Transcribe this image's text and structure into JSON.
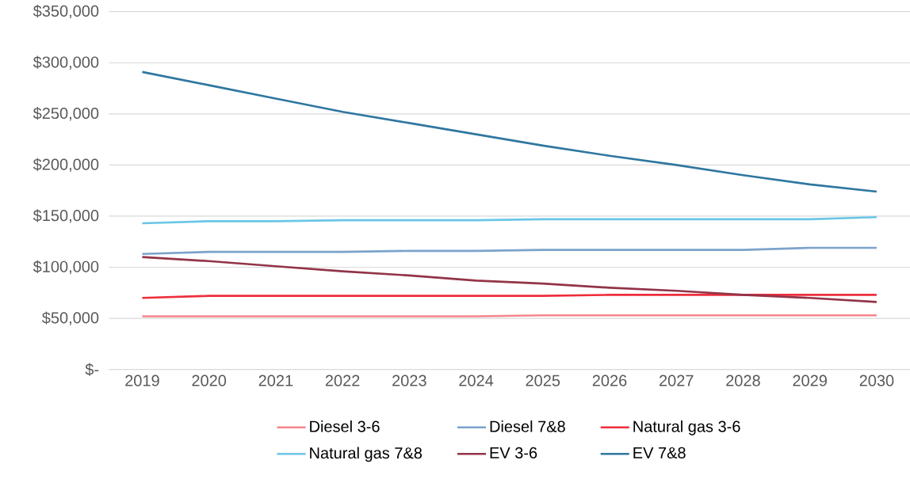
{
  "chart_data": {
    "type": "line",
    "categories": [
      "2019",
      "2020",
      "2021",
      "2022",
      "2023",
      "2024",
      "2025",
      "2026",
      "2027",
      "2028",
      "2029",
      "2030"
    ],
    "series": [
      {
        "name": "Diesel 3-6",
        "color": "#f4868c",
        "values": [
          52000,
          52000,
          52000,
          52000,
          52000,
          52000,
          53000,
          53000,
          53000,
          53000,
          53000,
          53000
        ]
      },
      {
        "name": "Diesel 7&8",
        "color": "#7ba3cb",
        "values": [
          113000,
          115000,
          115000,
          115000,
          116000,
          116000,
          117000,
          117000,
          117000,
          117000,
          119000,
          119000
        ]
      },
      {
        "name": "Natural gas 3-6",
        "color": "#ee2e3c",
        "values": [
          70000,
          72000,
          72000,
          72000,
          72000,
          72000,
          72000,
          73000,
          73000,
          73000,
          73000,
          73000
        ]
      },
      {
        "name": "Natural gas 7&8",
        "color": "#6ac6e6",
        "values": [
          143000,
          145000,
          145000,
          146000,
          146000,
          146000,
          147000,
          147000,
          147000,
          147000,
          147000,
          149000
        ]
      },
      {
        "name": "EV 3-6",
        "color": "#923448",
        "values": [
          110000,
          106000,
          101000,
          96000,
          92000,
          87000,
          84000,
          80000,
          77000,
          73000,
          70000,
          66000
        ]
      },
      {
        "name": "EV 7&8",
        "color": "#2f77a0",
        "values": [
          291000,
          278000,
          265000,
          252000,
          241000,
          230000,
          219000,
          209000,
          200000,
          190000,
          181000,
          174000
        ]
      }
    ],
    "ylim": [
      0,
      350000
    ],
    "yticks": [
      {
        "value": 0,
        "label": "$-"
      },
      {
        "value": 50000,
        "label": "$50,000"
      },
      {
        "value": 100000,
        "label": "$100,000"
      },
      {
        "value": 150000,
        "label": "$150,000"
      },
      {
        "value": 200000,
        "label": "$200,000"
      },
      {
        "value": 250000,
        "label": "$250,000"
      },
      {
        "value": 300000,
        "label": "$300,000"
      },
      {
        "value": 350000,
        "label": "$350,000"
      }
    ],
    "grid": "y",
    "legend": "bottom"
  }
}
